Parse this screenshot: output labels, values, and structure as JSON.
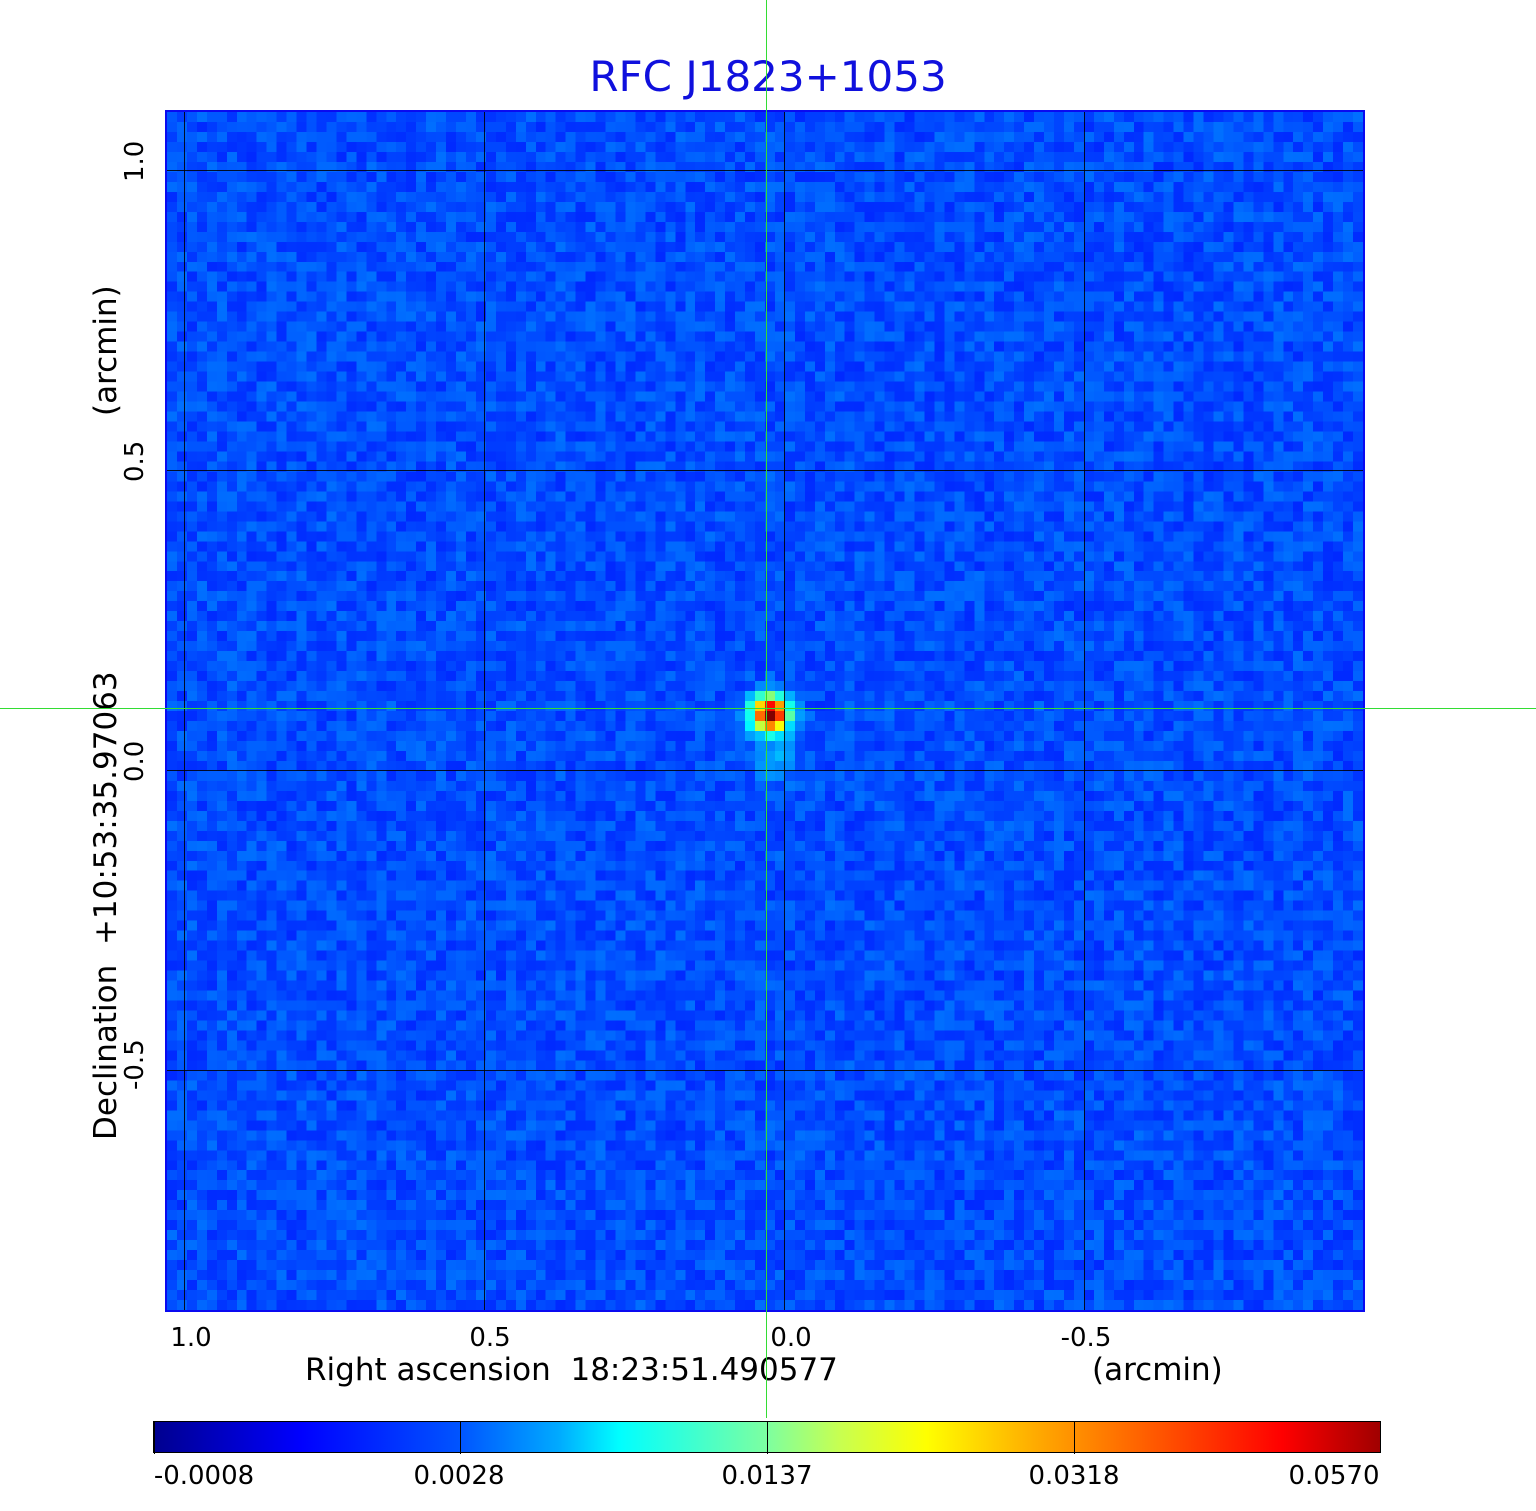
{
  "title": "RFC J1823+1053",
  "x_axis": {
    "label": "Right ascension  18:23:51.490577",
    "unit": "(arcmin)",
    "ticks": [
      "1.0",
      "0.5",
      "0.0",
      "-0.5"
    ]
  },
  "y_axis": {
    "label": "Declination  +10:53:35.97063",
    "unit": "(arcmin)",
    "ticks": [
      "1.0",
      "0.5",
      "0.0",
      "-0.5"
    ]
  },
  "colorbar": {
    "colormap": "jet",
    "ticks": [
      "-0.0008",
      "0.0028",
      "0.0137",
      "0.0318",
      "0.0570"
    ]
  },
  "image": {
    "description_type": "radio map, single compact source near center",
    "background_color": "#1f3cf2",
    "peak_value": 0.057,
    "crosshair_color": "#33dd33"
  }
}
